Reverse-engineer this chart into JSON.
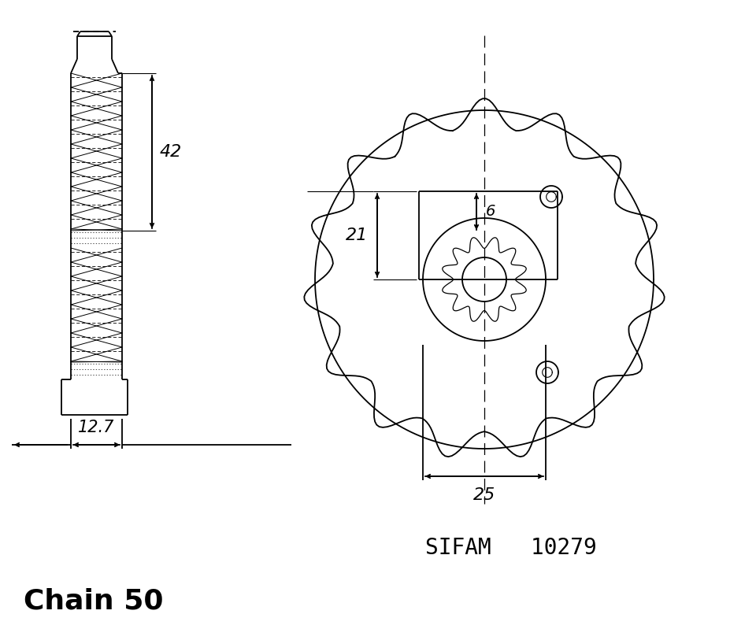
{
  "bg_color": "#ffffff",
  "line_color": "#000000",
  "chain_text": "Chain 50",
  "sifam_text": "SIFAM   10279",
  "dim_42": "42",
  "dim_12_7": "12.7",
  "dim_21": "21",
  "dim_6": "6",
  "dim_25": "25",
  "n_teeth": 15,
  "figsize": [
    9.6,
    7.99
  ],
  "dpi": 100
}
